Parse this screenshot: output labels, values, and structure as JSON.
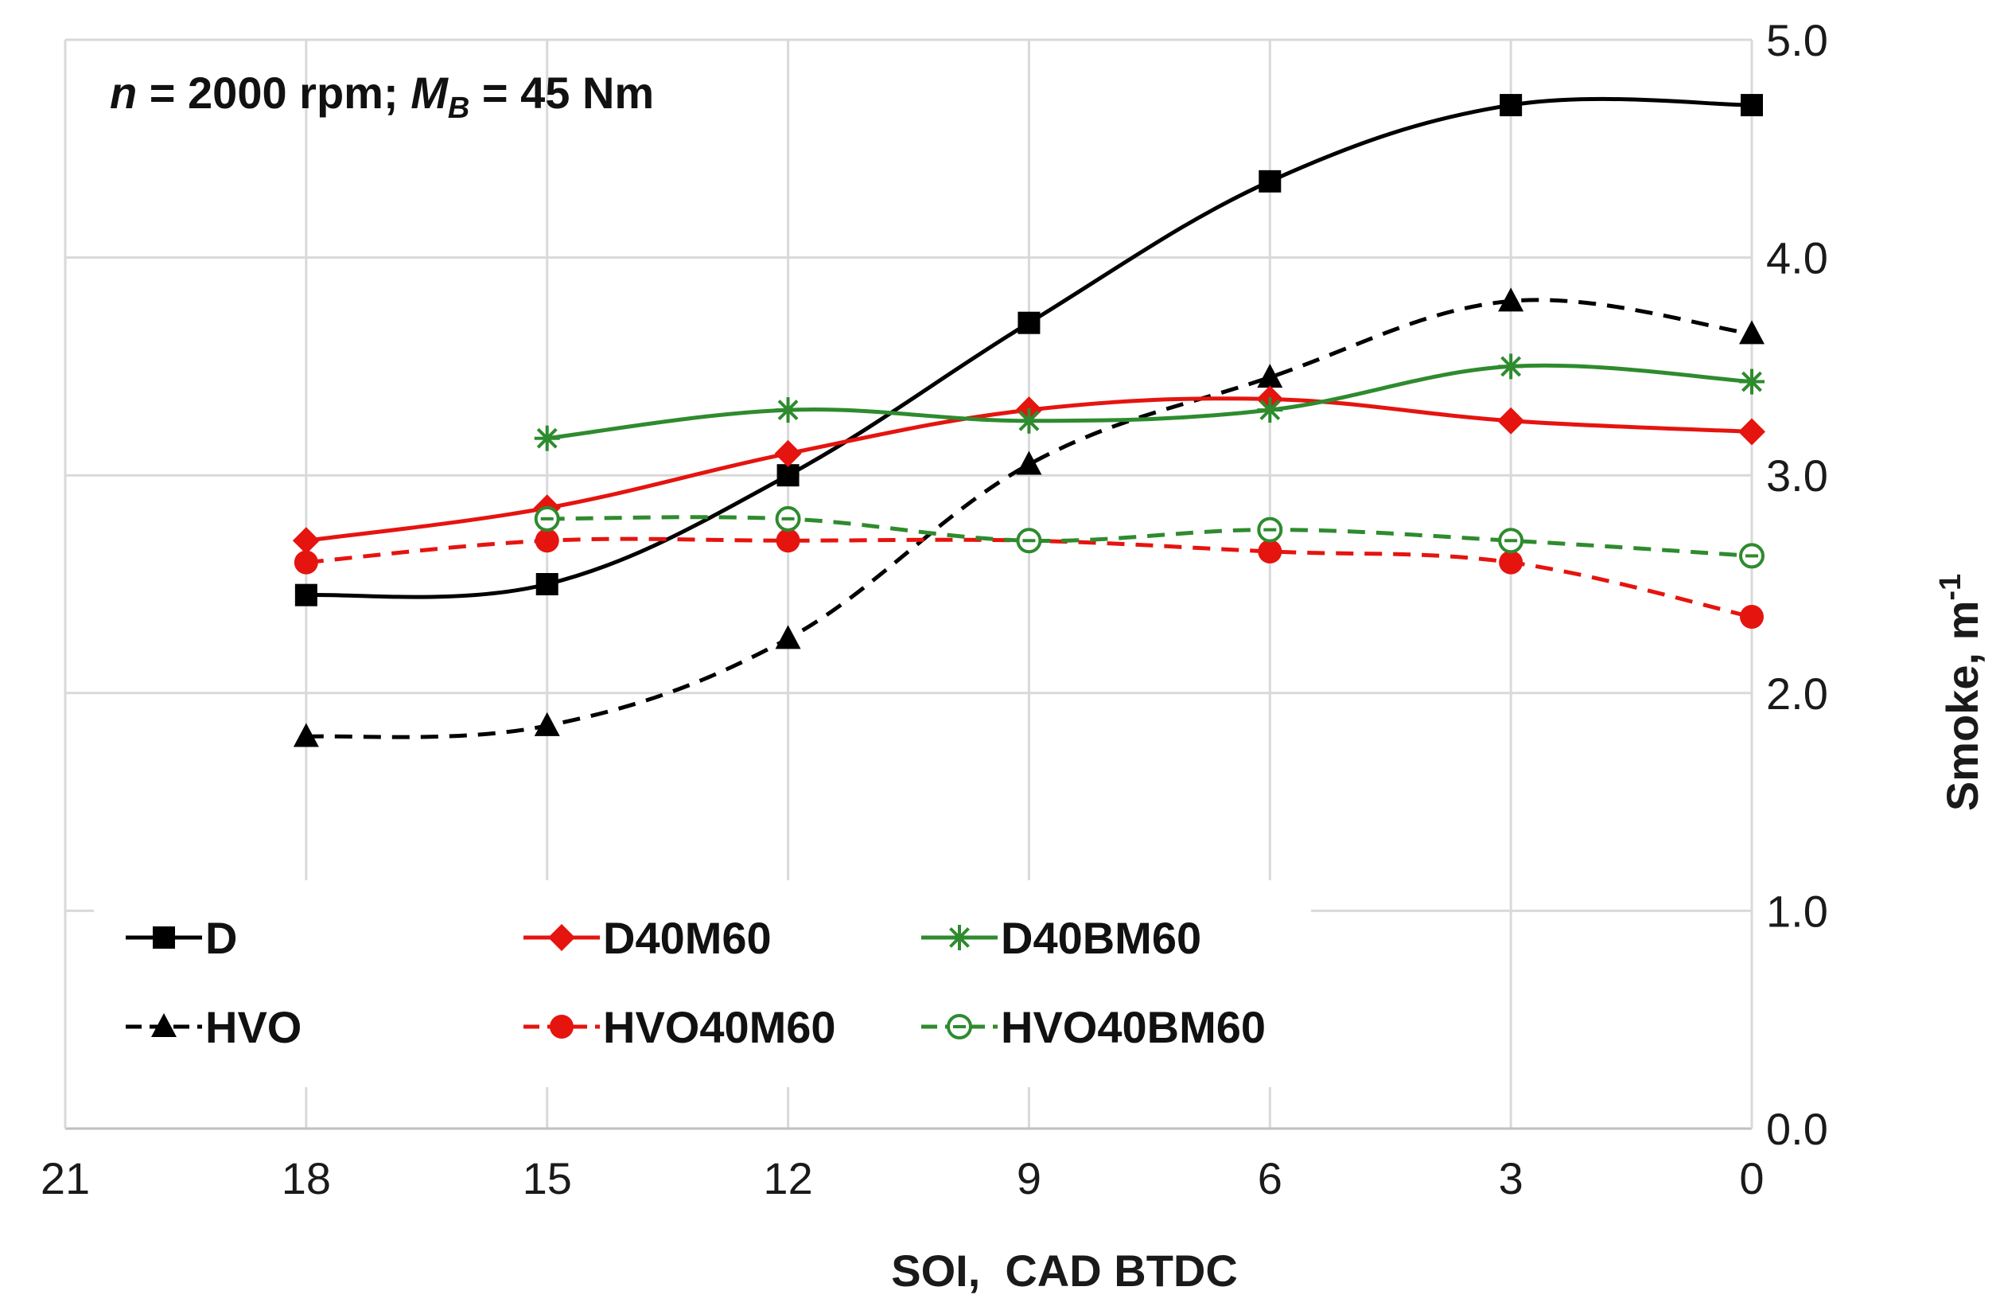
{
  "chart_data": {
    "type": "line",
    "annotation": {
      "n_symbol": "n",
      "n_rest": " = 2000 rpm; ",
      "m_symbol": "M",
      "m_sub": "B",
      "m_rest": " = 45 Nm"
    },
    "xlabel": "SOI,  CAD BTDC",
    "ylabel": "Smoke, m",
    "ylabel_sup": "-1",
    "x_reversed": true,
    "xlim": [
      21,
      0
    ],
    "ylim": [
      0.0,
      5.0
    ],
    "x_ticks": [
      "21",
      "18",
      "15",
      "12",
      "9",
      "6",
      "3",
      "0"
    ],
    "y_ticks": [
      "0.0",
      "1.0",
      "2.0",
      "3.0",
      "4.0",
      "5.0"
    ],
    "y_axis_side": "right",
    "grid": true,
    "series": [
      {
        "name": "D",
        "color": "#000000",
        "dash": "solid",
        "marker": "square",
        "x": [
          18,
          15,
          12,
          9,
          6,
          3,
          0
        ],
        "y": [
          2.45,
          2.5,
          3.0,
          3.7,
          4.35,
          4.7,
          4.7
        ]
      },
      {
        "name": "HVO",
        "color": "#000000",
        "dash": "dashed",
        "marker": "triangle",
        "x": [
          18,
          15,
          12,
          9,
          6,
          3,
          0
        ],
        "y": [
          1.8,
          1.85,
          2.25,
          3.05,
          3.45,
          3.8,
          3.65
        ]
      },
      {
        "name": "D40M60",
        "color": "#e5140f",
        "dash": "solid",
        "marker": "diamond",
        "x": [
          18,
          15,
          12,
          9,
          6,
          3,
          0
        ],
        "y": [
          2.7,
          2.85,
          3.1,
          3.3,
          3.35,
          3.25,
          3.2
        ]
      },
      {
        "name": "HVO40M60",
        "color": "#e5140f",
        "dash": "dashed",
        "marker": "circle",
        "x": [
          18,
          15,
          12,
          9,
          6,
          3,
          0
        ],
        "y": [
          2.6,
          2.7,
          2.7,
          2.7,
          2.65,
          2.6,
          2.35
        ]
      },
      {
        "name": "D40BM60",
        "color": "#2e8b2e",
        "dash": "solid",
        "marker": "star",
        "x": [
          15,
          12,
          9,
          6,
          3,
          0
        ],
        "y": [
          3.17,
          3.3,
          3.25,
          3.3,
          3.5,
          3.43
        ]
      },
      {
        "name": "HVO40BM60",
        "color": "#2e8b2e",
        "dash": "dashed",
        "marker": "open-circle",
        "x": [
          15,
          12,
          9,
          6,
          3,
          0
        ],
        "y": [
          2.8,
          2.8,
          2.7,
          2.75,
          2.7,
          2.63
        ]
      }
    ],
    "legend": {
      "placement": "bottom-left",
      "rows": [
        [
          "D",
          "D40M60",
          "D40BM60"
        ],
        [
          "HVO",
          "HVO40M60",
          "HVO40BM60"
        ]
      ]
    }
  }
}
